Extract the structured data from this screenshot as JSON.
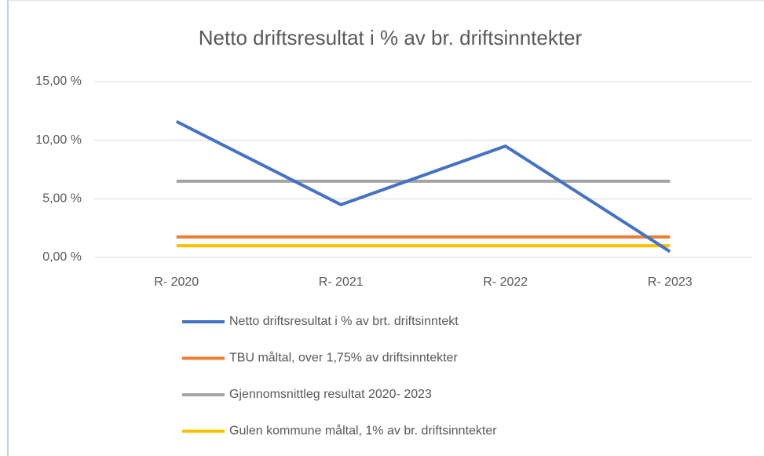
{
  "chart_data": {
    "type": "line",
    "title": "Netto driftsresultat i % av br. driftsinntekter",
    "categories": [
      "R- 2020",
      "R- 2021",
      "R- 2022",
      "R- 2023"
    ],
    "series": [
      {
        "name": "Netto driftsresultat i % av brt. driftsinntekt",
        "color": "#4472c4",
        "values": [
          11.6,
          4.5,
          9.5,
          0.5
        ]
      },
      {
        "name": "TBU måltal, over 1,75% av driftsinntekter",
        "color": "#ed7d31",
        "values": [
          1.75,
          1.75,
          1.75,
          1.75
        ]
      },
      {
        "name": "Gjennomsnittleg resultat 2020- 2023",
        "color": "#a5a5a5",
        "values": [
          6.5,
          6.5,
          6.5,
          6.5
        ]
      },
      {
        "name": "Gulen kommune måltal, 1% av br. driftsinntekter",
        "color": "#ffc000",
        "values": [
          1,
          1,
          1,
          1
        ]
      }
    ],
    "ylim": [
      0,
      15
    ],
    "yticks": [
      {
        "value": 0,
        "label": "0,00 %"
      },
      {
        "value": 5,
        "label": "5,00 %"
      },
      {
        "value": 10,
        "label": "10,00 %"
      },
      {
        "value": 15,
        "label": "15,00 %"
      }
    ],
    "grid": true,
    "legend": "bottom"
  }
}
